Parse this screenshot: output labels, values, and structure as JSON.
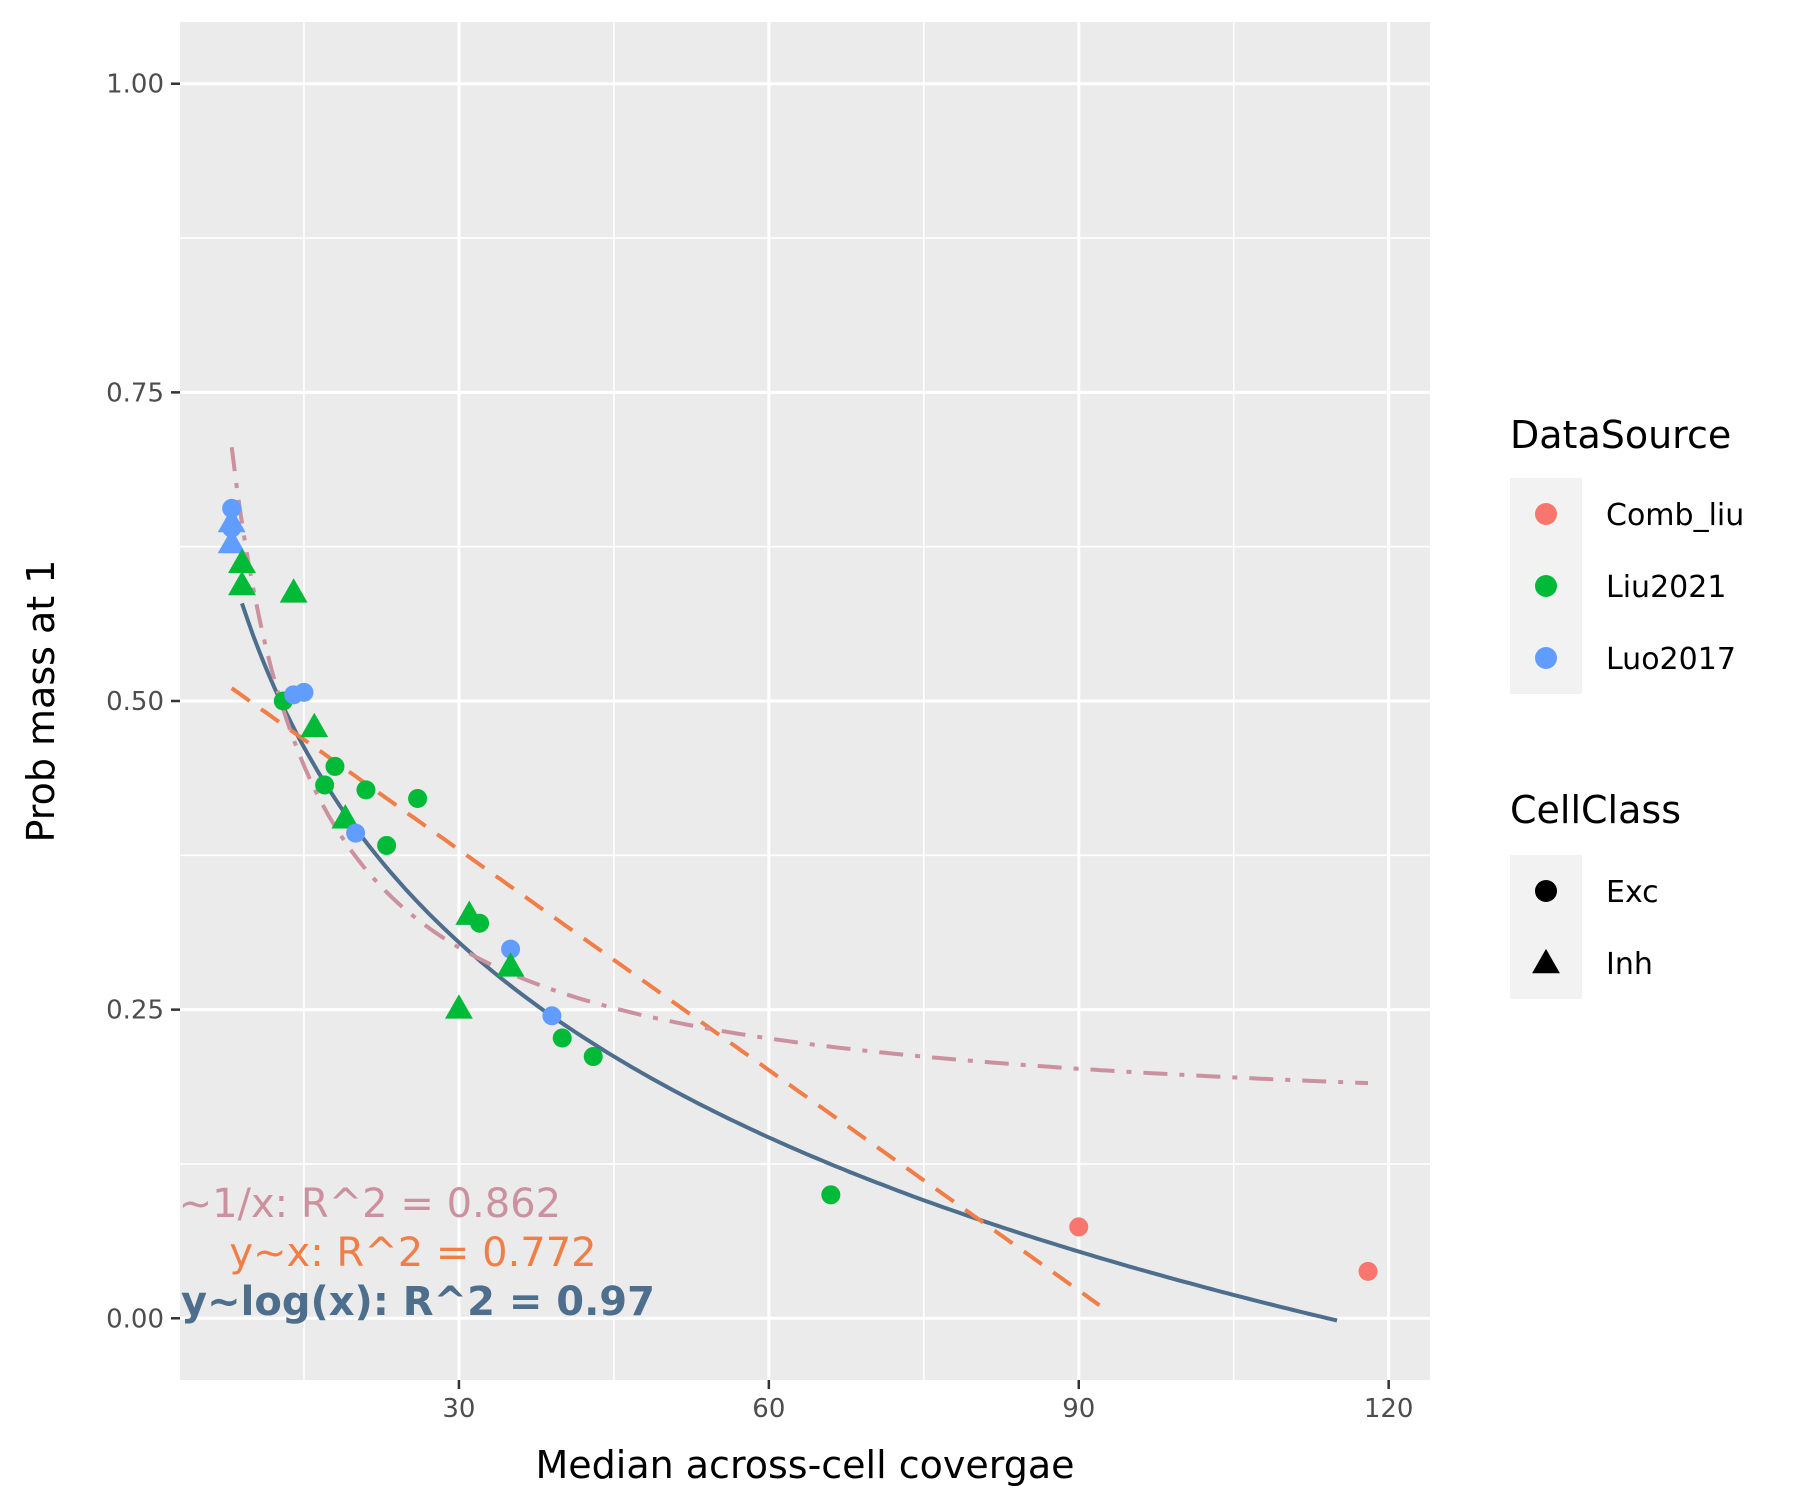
{
  "chart_data": {
    "type": "scatter",
    "xlabel": "Median across-cell covergae",
    "ylabel": "Prob mass at 1",
    "xlim": [
      3,
      124
    ],
    "ylim": [
      -0.05,
      1.05
    ],
    "x_ticks": [
      30,
      60,
      90,
      120
    ],
    "x_tick_labels": [
      "30",
      "60",
      "90",
      "120"
    ],
    "y_ticks": [
      0.0,
      0.25,
      0.5,
      0.75,
      1.0
    ],
    "y_tick_labels": [
      "0.00",
      "0.25",
      "0.50",
      "0.75",
      "1.00"
    ],
    "grid": true,
    "panel_background": "#ebebeb",
    "legends": [
      {
        "title": "DataSource",
        "entries": [
          {
            "label": "Comb_liu",
            "color": "#f8766d",
            "shape": "circle"
          },
          {
            "label": "Liu2021",
            "color": "#00ba38",
            "shape": "circle"
          },
          {
            "label": "Luo2017",
            "color": "#619cff",
            "shape": "circle"
          }
        ]
      },
      {
        "title": "CellClass",
        "entries": [
          {
            "label": "Exc",
            "color": "#000000",
            "shape": "circle"
          },
          {
            "label": "Inh",
            "color": "#000000",
            "shape": "triangle"
          }
        ]
      }
    ],
    "points": [
      {
        "source": "Luo2017",
        "cls": "Exc",
        "x": 8,
        "y": 0.656
      },
      {
        "source": "Luo2017",
        "cls": "Exc",
        "x": 8,
        "y": 0.64
      },
      {
        "source": "Luo2017",
        "cls": "Inh",
        "x": 8,
        "y": 0.645
      },
      {
        "source": "Luo2017",
        "cls": "Inh",
        "x": 8,
        "y": 0.628
      },
      {
        "source": "Liu2021",
        "cls": "Inh",
        "x": 9,
        "y": 0.612
      },
      {
        "source": "Liu2021",
        "cls": "Inh",
        "x": 9,
        "y": 0.594
      },
      {
        "source": "Liu2021",
        "cls": "Inh",
        "x": 14,
        "y": 0.588
      },
      {
        "source": "Liu2021",
        "cls": "Exc",
        "x": 13,
        "y": 0.5
      },
      {
        "source": "Luo2017",
        "cls": "Exc",
        "x": 14,
        "y": 0.505
      },
      {
        "source": "Luo2017",
        "cls": "Exc",
        "x": 15,
        "y": 0.507
      },
      {
        "source": "Liu2021",
        "cls": "Inh",
        "x": 16,
        "y": 0.479
      },
      {
        "source": "Liu2021",
        "cls": "Exc",
        "x": 18,
        "y": 0.447
      },
      {
        "source": "Liu2021",
        "cls": "Exc",
        "x": 17,
        "y": 0.432
      },
      {
        "source": "Liu2021",
        "cls": "Exc",
        "x": 21,
        "y": 0.428
      },
      {
        "source": "Liu2021",
        "cls": "Inh",
        "x": 19,
        "y": 0.405
      },
      {
        "source": "Luo2017",
        "cls": "Exc",
        "x": 20,
        "y": 0.393
      },
      {
        "source": "Liu2021",
        "cls": "Exc",
        "x": 23,
        "y": 0.383
      },
      {
        "source": "Liu2021",
        "cls": "Exc",
        "x": 26,
        "y": 0.421
      },
      {
        "source": "Liu2021",
        "cls": "Inh",
        "x": 31,
        "y": 0.327
      },
      {
        "source": "Liu2021",
        "cls": "Exc",
        "x": 32,
        "y": 0.32
      },
      {
        "source": "Luo2017",
        "cls": "Exc",
        "x": 35,
        "y": 0.299
      },
      {
        "source": "Liu2021",
        "cls": "Inh",
        "x": 35,
        "y": 0.285
      },
      {
        "source": "Liu2021",
        "cls": "Inh",
        "x": 30,
        "y": 0.251
      },
      {
        "source": "Luo2017",
        "cls": "Exc",
        "x": 39,
        "y": 0.245
      },
      {
        "source": "Liu2021",
        "cls": "Exc",
        "x": 40,
        "y": 0.227
      },
      {
        "source": "Liu2021",
        "cls": "Exc",
        "x": 43,
        "y": 0.212
      },
      {
        "source": "Liu2021",
        "cls": "Exc",
        "x": 66,
        "y": 0.1
      },
      {
        "source": "Comb_liu",
        "cls": "Exc",
        "x": 90,
        "y": 0.074
      },
      {
        "source": "Comb_liu",
        "cls": "Exc",
        "x": 118,
        "y": 0.038
      }
    ],
    "fits": [
      {
        "model": "y~log(x)",
        "color": "#4d6e8c",
        "style": "solid",
        "a": 1.08,
        "b": -0.228,
        "x_from": 9,
        "x_to": 115
      },
      {
        "model": "y~x",
        "color": "#f07e46",
        "style": "dashed",
        "a": 0.558,
        "b": -0.00595,
        "x_from": 8,
        "x_to": 92
      },
      {
        "model": "y~1/x",
        "color": "#cc919f",
        "style": "dashdot",
        "a": 0.153,
        "b": 4.42,
        "x_from": 8,
        "x_to": 118
      }
    ],
    "annotations": [
      {
        "text": "y~1/x: R^2 = 0.862",
        "color": "#cc919f",
        "bold": false
      },
      {
        "text": "y~x: R^2 = 0.772",
        "color": "#f07e46",
        "bold": false
      },
      {
        "text": "y~log(x): R^2 = 0.97",
        "color": "#4d6e8c",
        "bold": true
      }
    ]
  }
}
